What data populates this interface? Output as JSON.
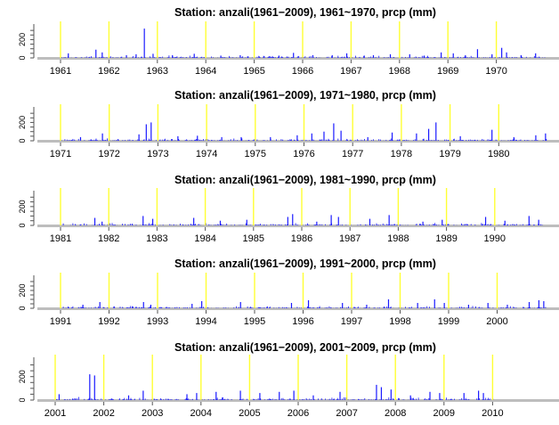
{
  "colors": {
    "bars": "#1a1aff",
    "year_lines": "#ffff33",
    "axis": "#555555",
    "baseline": "#bdbdbd"
  },
  "chart_data": [
    {
      "type": "bar",
      "title": "Station: anzali(1961−2009), 1961~1970,  prcp (mm)",
      "xlabel": "",
      "ylabel": "",
      "x_ticks": [
        "1961",
        "1962",
        "1963",
        "1964",
        "1965",
        "1966",
        "1967",
        "1968",
        "1969",
        "1970"
      ],
      "y_ticks": [
        "0",
        "200"
      ],
      "ylim": [
        0,
        350
      ],
      "grid": false,
      "n_years": 10,
      "peaks": [
        [
          0.15,
          50
        ],
        [
          0.72,
          90
        ],
        [
          0.85,
          60
        ],
        [
          1.35,
          30
        ],
        [
          1.55,
          40
        ],
        [
          1.72,
          320
        ],
        [
          1.9,
          45
        ],
        [
          2.3,
          30
        ],
        [
          2.75,
          45
        ],
        [
          3.3,
          25
        ],
        [
          3.7,
          30
        ],
        [
          4.5,
          25
        ],
        [
          4.8,
          55
        ],
        [
          5.2,
          30
        ],
        [
          5.6,
          30
        ],
        [
          5.9,
          50
        ],
        [
          6.45,
          30
        ],
        [
          6.8,
          40
        ],
        [
          7.2,
          40
        ],
        [
          7.5,
          25
        ],
        [
          7.85,
          60
        ],
        [
          8.1,
          50
        ],
        [
          8.35,
          30
        ],
        [
          8.6,
          95
        ],
        [
          8.9,
          40
        ],
        [
          9.1,
          110
        ],
        [
          9.2,
          60
        ],
        [
          9.5,
          30
        ],
        [
          9.8,
          50
        ]
      ]
    },
    {
      "type": "bar",
      "title": "Station: anzali(1961−2009), 1971~1980,  prcp (mm)",
      "xlabel": "",
      "ylabel": "",
      "x_ticks": [
        "1971",
        "1972",
        "1973",
        "1974",
        "1975",
        "1976",
        "1977",
        "1978",
        "1979",
        "1980"
      ],
      "y_ticks": [
        "0",
        "200"
      ],
      "ylim": [
        0,
        350
      ],
      "grid": false,
      "n_years": 10,
      "peaks": [
        [
          0.4,
          40
        ],
        [
          0.85,
          80
        ],
        [
          1.6,
          70
        ],
        [
          1.75,
          180
        ],
        [
          1.85,
          200
        ],
        [
          2.4,
          50
        ],
        [
          2.8,
          55
        ],
        [
          3.3,
          40
        ],
        [
          3.7,
          40
        ],
        [
          4.3,
          40
        ],
        [
          4.85,
          60
        ],
        [
          5.15,
          80
        ],
        [
          5.4,
          100
        ],
        [
          5.6,
          190
        ],
        [
          5.75,
          110
        ],
        [
          6.3,
          40
        ],
        [
          6.8,
          90
        ],
        [
          7.3,
          80
        ],
        [
          7.55,
          130
        ],
        [
          7.7,
          200
        ],
        [
          8.2,
          50
        ],
        [
          8.85,
          120
        ],
        [
          9.3,
          40
        ],
        [
          9.75,
          60
        ],
        [
          9.95,
          80
        ]
      ]
    },
    {
      "type": "bar",
      "title": "Station: anzali(1961−2009), 1981~1990,  prcp (mm)",
      "xlabel": "",
      "ylabel": "",
      "x_ticks": [
        "1981",
        "1982",
        "1983",
        "1984",
        "1985",
        "1986",
        "1987",
        "1988",
        "1989",
        "1990"
      ],
      "y_ticks": [
        "0",
        "200"
      ],
      "ylim": [
        0,
        350
      ],
      "grid": false,
      "n_years": 10,
      "peaks": [
        [
          0.7,
          80
        ],
        [
          0.85,
          40
        ],
        [
          1.7,
          100
        ],
        [
          1.9,
          70
        ],
        [
          2.75,
          80
        ],
        [
          3.3,
          50
        ],
        [
          3.85,
          60
        ],
        [
          4.7,
          90
        ],
        [
          4.8,
          120
        ],
        [
          5.3,
          40
        ],
        [
          5.6,
          110
        ],
        [
          5.75,
          90
        ],
        [
          6.4,
          70
        ],
        [
          6.8,
          110
        ],
        [
          7.5,
          40
        ],
        [
          7.9,
          60
        ],
        [
          8.8,
          90
        ],
        [
          9.2,
          50
        ],
        [
          9.7,
          100
        ],
        [
          9.9,
          60
        ]
      ]
    },
    {
      "type": "bar",
      "title": "Station: anzali(1961−2009), 1991~2000,  prcp (mm)",
      "xlabel": "",
      "ylabel": "",
      "x_ticks": [
        "1991",
        "1992",
        "1993",
        "1994",
        "1995",
        "1996",
        "1997",
        "1998",
        "1999",
        "2000"
      ],
      "y_ticks": [
        "0",
        "200"
      ],
      "ylim": [
        0,
        350
      ],
      "grid": false,
      "n_years": 10,
      "peaks": [
        [
          0.45,
          40
        ],
        [
          0.8,
          70
        ],
        [
          1.7,
          70
        ],
        [
          1.85,
          40
        ],
        [
          2.7,
          50
        ],
        [
          2.9,
          80
        ],
        [
          3.7,
          70
        ],
        [
          4.75,
          60
        ],
        [
          5.1,
          90
        ],
        [
          5.8,
          60
        ],
        [
          6.3,
          40
        ],
        [
          6.75,
          100
        ],
        [
          7.35,
          60
        ],
        [
          7.7,
          100
        ],
        [
          7.9,
          60
        ],
        [
          8.4,
          40
        ],
        [
          8.8,
          60
        ],
        [
          9.2,
          40
        ],
        [
          9.65,
          70
        ],
        [
          9.85,
          90
        ],
        [
          9.95,
          80
        ]
      ]
    },
    {
      "type": "bar",
      "title": "Station: anzali(1961−2009), 2001~2009,  prcp (mm)",
      "xlabel": "",
      "ylabel": "",
      "x_ticks": [
        "2001",
        "2002",
        "2003",
        "2004",
        "2005",
        "2006",
        "2007",
        "2008",
        "2009",
        "2010"
      ],
      "y_ticks": [
        "0",
        "200"
      ],
      "ylim": [
        0,
        350
      ],
      "grid": false,
      "n_years": 9,
      "peaks": [
        [
          0.07,
          50
        ],
        [
          0.7,
          220
        ],
        [
          0.8,
          210
        ],
        [
          1.5,
          40
        ],
        [
          1.8,
          80
        ],
        [
          2.7,
          50
        ],
        [
          2.9,
          60
        ],
        [
          3.3,
          70
        ],
        [
          3.8,
          80
        ],
        [
          4.2,
          60
        ],
        [
          4.6,
          70
        ],
        [
          4.9,
          80
        ],
        [
          5.3,
          40
        ],
        [
          5.85,
          70
        ],
        [
          6.6,
          130
        ],
        [
          6.7,
          110
        ],
        [
          6.9,
          90
        ],
        [
          7.3,
          40
        ],
        [
          7.7,
          70
        ],
        [
          7.9,
          60
        ],
        [
          8.4,
          60
        ],
        [
          8.7,
          80
        ],
        [
          8.8,
          60
        ]
      ]
    }
  ]
}
